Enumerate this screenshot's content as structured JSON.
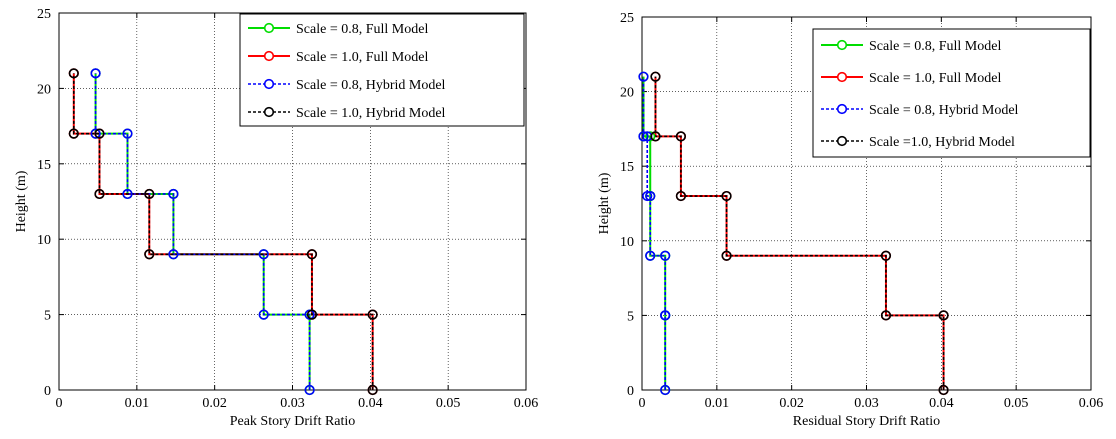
{
  "chart_data": [
    {
      "type": "line",
      "xlabel": "Peak Story Drift Ratio",
      "ylabel": "Height (m)",
      "xlim": [
        0,
        0.06
      ],
      "ylim": [
        0,
        25
      ],
      "x_ticks": [
        0,
        0.01,
        0.02,
        0.03,
        0.04,
        0.05,
        0.06
      ],
      "x_tick_labels": [
        "0",
        "0.01",
        "0.02",
        "0.03",
        "0.04",
        "0.05",
        "0.06"
      ],
      "y_ticks": [
        0,
        5,
        10,
        15,
        20,
        25
      ],
      "y_tick_labels": [
        "0",
        "5",
        "10",
        "15",
        "20",
        "25"
      ],
      "grid": true,
      "legend_position": "top-right",
      "series": [
        {
          "name": "Scale = 0.8, Full Model",
          "color": "#00dd00",
          "style": "solid",
          "x": [
            0.0322,
            0.0322,
            0.0263,
            0.0263,
            0.0147,
            0.0147,
            0.0088,
            0.0088,
            0.0047,
            0.0047
          ],
          "y": [
            0,
            5,
            5,
            9,
            9,
            13,
            13,
            17,
            17,
            21
          ]
        },
        {
          "name": "Scale = 1.0, Full Model",
          "color": "#ff0000",
          "style": "solid",
          "x": [
            0.0403,
            0.0403,
            0.0325,
            0.0325,
            0.0116,
            0.0116,
            0.0052,
            0.0052,
            0.0019,
            0.0019
          ],
          "y": [
            0,
            5,
            5,
            9,
            9,
            13,
            13,
            17,
            17,
            21
          ]
        },
        {
          "name": "Scale = 0.8, Hybrid Model",
          "color": "#0000ff",
          "style": "dashed",
          "x": [
            0.0322,
            0.0322,
            0.0263,
            0.0263,
            0.0147,
            0.0147,
            0.0088,
            0.0088,
            0.0047,
            0.0047
          ],
          "y": [
            0,
            5,
            5,
            9,
            9,
            13,
            13,
            17,
            17,
            21
          ]
        },
        {
          "name": "Scale = 1.0, Hybrid Model",
          "color": "#000000",
          "style": "dashed",
          "x": [
            0.0403,
            0.0403,
            0.0325,
            0.0325,
            0.0116,
            0.0116,
            0.0052,
            0.0052,
            0.0019,
            0.0019
          ],
          "y": [
            0,
            5,
            5,
            9,
            9,
            13,
            13,
            17,
            17,
            21
          ]
        }
      ]
    },
    {
      "type": "line",
      "xlabel": "Residual Story Drift Ratio",
      "ylabel": "Height (m)",
      "xlim": [
        0,
        0.06
      ],
      "ylim": [
        0,
        25
      ],
      "x_ticks": [
        0,
        0.01,
        0.02,
        0.03,
        0.04,
        0.05,
        0.06
      ],
      "x_tick_labels": [
        "0",
        "0.01",
        "0.02",
        "0.03",
        "0.04",
        "0.05",
        "0.06"
      ],
      "y_ticks": [
        0,
        5,
        10,
        15,
        20,
        25
      ],
      "y_tick_labels": [
        "0",
        "5",
        "10",
        "15",
        "20",
        "25"
      ],
      "grid": true,
      "legend_position": "top-right",
      "series": [
        {
          "name": "Scale = 0.8, Full Model",
          "color": "#00dd00",
          "style": "solid",
          "x": [
            0.0031,
            0.0031,
            0.0031,
            0.0031,
            0.0011,
            0.0011,
            0.0011,
            0.0011,
            0.0002,
            0.0002
          ],
          "y": [
            0,
            5,
            5,
            9,
            9,
            13,
            13,
            17,
            17,
            21
          ]
        },
        {
          "name": "Scale = 1.0, Full Model",
          "color": "#ff0000",
          "style": "solid",
          "x": [
            0.0403,
            0.0403,
            0.0326,
            0.0326,
            0.0113,
            0.0113,
            0.0052,
            0.0052,
            0.0018,
            0.0018
          ],
          "y": [
            0,
            5,
            5,
            9,
            9,
            13,
            13,
            17,
            17,
            21
          ]
        },
        {
          "name": "Scale = 0.8, Hybrid Model",
          "color": "#0000ff",
          "style": "dashed",
          "x": [
            0.0031,
            0.0031,
            0.0031,
            0.0031,
            0.0011,
            0.0011,
            0.0007,
            0.0007,
            0.0002,
            0.0002
          ],
          "y": [
            0,
            5,
            5,
            9,
            9,
            13,
            13,
            17,
            17,
            21
          ]
        },
        {
          "name": "Scale =1.0, Hybrid Model",
          "color": "#000000",
          "style": "dashed",
          "x": [
            0.0403,
            0.0403,
            0.0326,
            0.0326,
            0.0113,
            0.0113,
            0.0052,
            0.0052,
            0.0018,
            0.0018
          ],
          "y": [
            0,
            5,
            5,
            9,
            9,
            13,
            13,
            17,
            17,
            21
          ]
        }
      ]
    }
  ]
}
